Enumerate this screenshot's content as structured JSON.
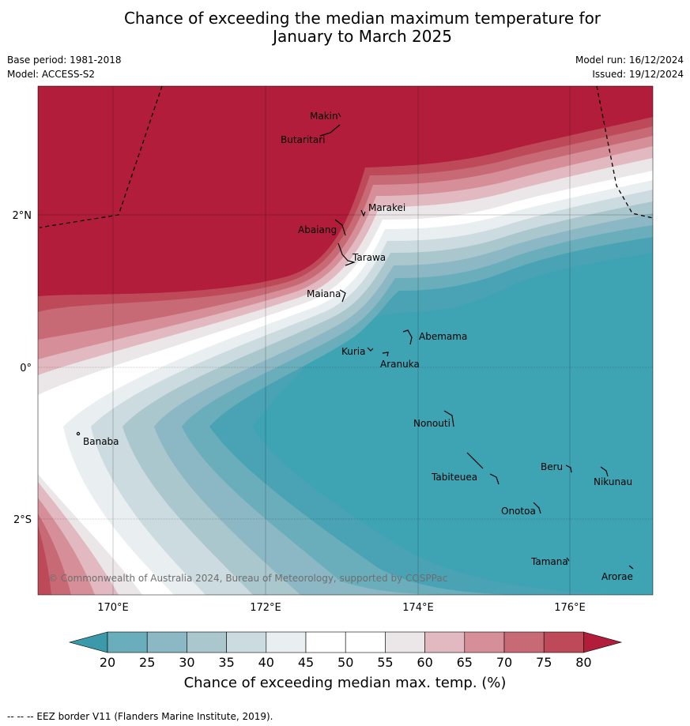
{
  "title_line1": "Chance of exceeding the median maximum temperature for",
  "title_line2": "January to March 2025",
  "meta": {
    "base_period": "Base period: 1981-2018",
    "model": "Model: ACCESS-S2",
    "model_run": "Model run: 16/12/2024",
    "issued": "Issued: 19/12/2024"
  },
  "axes": {
    "x_ticks": [
      "170°E",
      "172°E",
      "174°E",
      "176°E"
    ],
    "y_ticks": [
      "2°N",
      "0°",
      "2°S"
    ]
  },
  "places": [
    "Makin",
    "Butaritari",
    "Marakei",
    "Abaiang",
    "Tarawa",
    "Maiana",
    "Abemama",
    "Kuria",
    "Aranuka",
    "Nonouti",
    "Banaba",
    "Tabiteuea",
    "Beru",
    "Nikunau",
    "Onotoa",
    "Tamana",
    "Arorae"
  ],
  "copyright": "© Commonwealth of Australia 2024, Bureau of Meteorology, supported by COSPPac",
  "colorbar": {
    "ticks": [
      "20",
      "25",
      "30",
      "35",
      "40",
      "45",
      "50",
      "55",
      "60",
      "65",
      "70",
      "75",
      "80"
    ],
    "colors": [
      "#3b9aa9",
      "#6aaebb",
      "#8bb8c4",
      "#a9c7cd",
      "#ccdbdf",
      "#e9eff1",
      "#ffffff",
      "#ffffff",
      "#ebe7e9",
      "#e2b9c0",
      "#d68f99",
      "#c86a76",
      "#be4a59",
      "#b11d3a"
    ],
    "label": "Chance of exceeding median max. temp. (%)"
  },
  "footer": "--  --  -- EEZ border V11 (Flanders Marine Institute, 2019)."
}
